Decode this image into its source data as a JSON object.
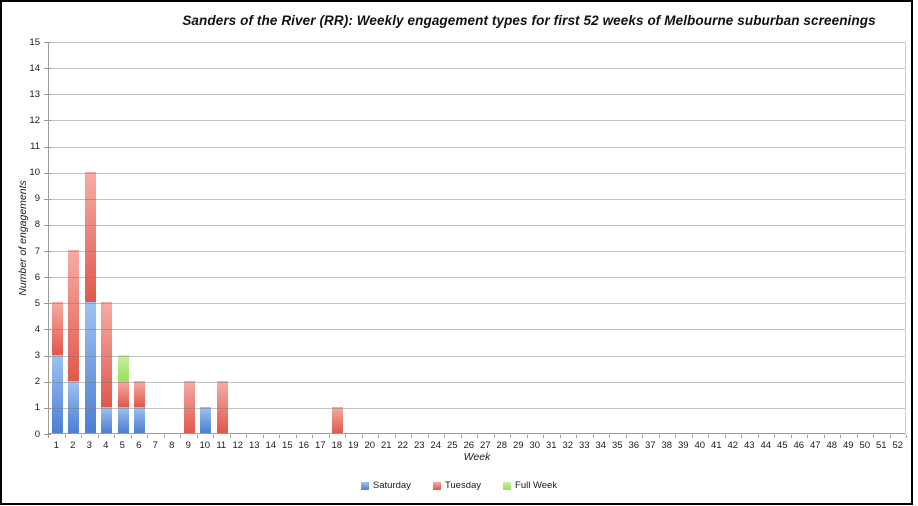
{
  "chart_data": {
    "type": "bar",
    "stacked": true,
    "title": "Sanders of the River (RR): Weekly engagement types for first 52 weeks of Melbourne suburban screenings",
    "xlabel": "Week",
    "ylabel": "Number of engagements",
    "categories": [
      "1",
      "2",
      "3",
      "4",
      "5",
      "6",
      "7",
      "8",
      "9",
      "10",
      "11",
      "12",
      "13",
      "14",
      "15",
      "16",
      "17",
      "18",
      "19",
      "20",
      "21",
      "22",
      "23",
      "24",
      "25",
      "26",
      "27",
      "28",
      "29",
      "30",
      "31",
      "32",
      "33",
      "34",
      "35",
      "36",
      "37",
      "38",
      "39",
      "40",
      "41",
      "42",
      "43",
      "44",
      "45",
      "46",
      "47",
      "48",
      "49",
      "50",
      "51",
      "52"
    ],
    "series": [
      {
        "name": "Saturday",
        "color_top": "#9FC3F0",
        "color_bottom": "#4B7ED4",
        "values": [
          3,
          2,
          5,
          1,
          1,
          1,
          0,
          0,
          0,
          1,
          0,
          0,
          0,
          0,
          0,
          0,
          0,
          0,
          0,
          0,
          0,
          0,
          0,
          0,
          0,
          0,
          0,
          0,
          0,
          0,
          0,
          0,
          0,
          0,
          0,
          0,
          0,
          0,
          0,
          0,
          0,
          0,
          0,
          0,
          0,
          0,
          0,
          0,
          0,
          0,
          0,
          0
        ]
      },
      {
        "name": "Tuesday",
        "color_top": "#F6ACA5",
        "color_bottom": "#E0584C",
        "values": [
          2,
          5,
          5,
          4,
          1,
          1,
          0,
          0,
          2,
          0,
          2,
          0,
          0,
          0,
          0,
          0,
          0,
          1,
          0,
          0,
          0,
          0,
          0,
          0,
          0,
          0,
          0,
          0,
          0,
          0,
          0,
          0,
          0,
          0,
          0,
          0,
          0,
          0,
          0,
          0,
          0,
          0,
          0,
          0,
          0,
          0,
          0,
          0,
          0,
          0,
          0,
          0
        ]
      },
      {
        "name": "Full Week",
        "color_top": "#CBEFA3",
        "color_bottom": "#99DE58",
        "values": [
          0,
          0,
          0,
          0,
          1,
          0,
          0,
          0,
          0,
          0,
          0,
          0,
          0,
          0,
          0,
          0,
          0,
          0,
          0,
          0,
          0,
          0,
          0,
          0,
          0,
          0,
          0,
          0,
          0,
          0,
          0,
          0,
          0,
          0,
          0,
          0,
          0,
          0,
          0,
          0,
          0,
          0,
          0,
          0,
          0,
          0,
          0,
          0,
          0,
          0,
          0,
          0
        ]
      }
    ],
    "ylim": [
      0,
      15
    ],
    "ytick_step": 1,
    "grid": true,
    "legend_position": "bottom",
    "axis_color": "#9B9B9B",
    "gridline_color": "#C8C8C8",
    "text_color": "#1A1A1A"
  }
}
